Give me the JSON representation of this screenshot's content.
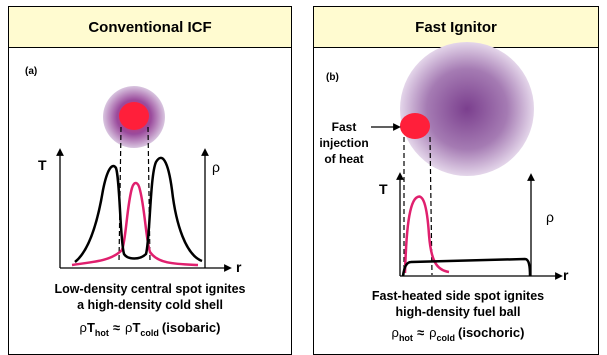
{
  "left_panel": {
    "title": "Conventional ICF",
    "label": "(a)",
    "axis_t": "T",
    "axis_rho": "ρ",
    "axis_r": "r",
    "caption_line1": "Low-density central spot ignites",
    "caption_line2": "a high-density cold shell",
    "formula": {
      "lhs_rho": "ρ",
      "lhs_T": "T",
      "lhs_sub": "hot",
      "approx": "≈",
      "rhs_rho": "ρ",
      "rhs_T": "T",
      "rhs_sub": "cold",
      "suffix": "(isobaric)"
    }
  },
  "right_panel": {
    "title": "Fast Ignitor",
    "label": "(b)",
    "annotation_line1": "Fast",
    "annotation_line2": "injection",
    "annotation_line3": "of heat",
    "axis_t": "T",
    "axis_rho": "ρ",
    "axis_r": "r",
    "caption_line1": "Fast-heated side spot ignites",
    "caption_line2": "high-density fuel ball",
    "formula": {
      "lhs_rho": "ρ",
      "lhs_sub": "hot",
      "approx": "≈",
      "rhs_rho": "ρ",
      "rhs_sub": "cold",
      "suffix": "(isochoric)"
    }
  },
  "colors": {
    "header_bg": "#fffbd0",
    "hot_spot": "#ff1f3a",
    "temperature_curve": "#e0206e",
    "density_curve": "#000000",
    "fuel_ball": "#7b3f8e"
  }
}
